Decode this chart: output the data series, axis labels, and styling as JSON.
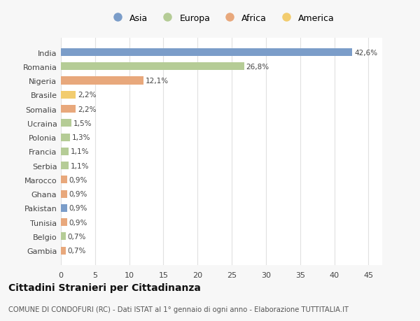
{
  "countries": [
    "India",
    "Romania",
    "Nigeria",
    "Brasile",
    "Somalia",
    "Ucraina",
    "Polonia",
    "Francia",
    "Serbia",
    "Marocco",
    "Ghana",
    "Pakistan",
    "Tunisia",
    "Belgio",
    "Gambia"
  ],
  "values": [
    42.6,
    26.8,
    12.1,
    2.2,
    2.2,
    1.5,
    1.3,
    1.1,
    1.1,
    0.9,
    0.9,
    0.9,
    0.9,
    0.7,
    0.7
  ],
  "labels": [
    "42,6%",
    "26,8%",
    "12,1%",
    "2,2%",
    "2,2%",
    "1,5%",
    "1,3%",
    "1,1%",
    "1,1%",
    "0,9%",
    "0,9%",
    "0,9%",
    "0,9%",
    "0,7%",
    "0,7%"
  ],
  "colors": [
    "#7b9dc9",
    "#b5cc96",
    "#e8a87c",
    "#f2cc6e",
    "#e8a87c",
    "#b5cc96",
    "#b5cc96",
    "#b5cc96",
    "#b5cc96",
    "#e8a87c",
    "#e8a87c",
    "#7b9dc9",
    "#e8a87c",
    "#b5cc96",
    "#e8a87c"
  ],
  "legend_labels": [
    "Asia",
    "Europa",
    "Africa",
    "America"
  ],
  "legend_colors": [
    "#7b9dc9",
    "#b5cc96",
    "#e8a87c",
    "#f2cc6e"
  ],
  "title": "Cittadini Stranieri per Cittadinanza",
  "subtitle": "COMUNE DI CONDOFURI (RC) - Dati ISTAT al 1° gennaio di ogni anno - Elaborazione TUTTITALIA.IT",
  "xlim": [
    0,
    47
  ],
  "xticks": [
    0,
    5,
    10,
    15,
    20,
    25,
    30,
    35,
    40,
    45
  ],
  "bg_color": "#f7f7f7",
  "bar_bg_color": "#ffffff",
  "grid_color": "#e0e0e0"
}
